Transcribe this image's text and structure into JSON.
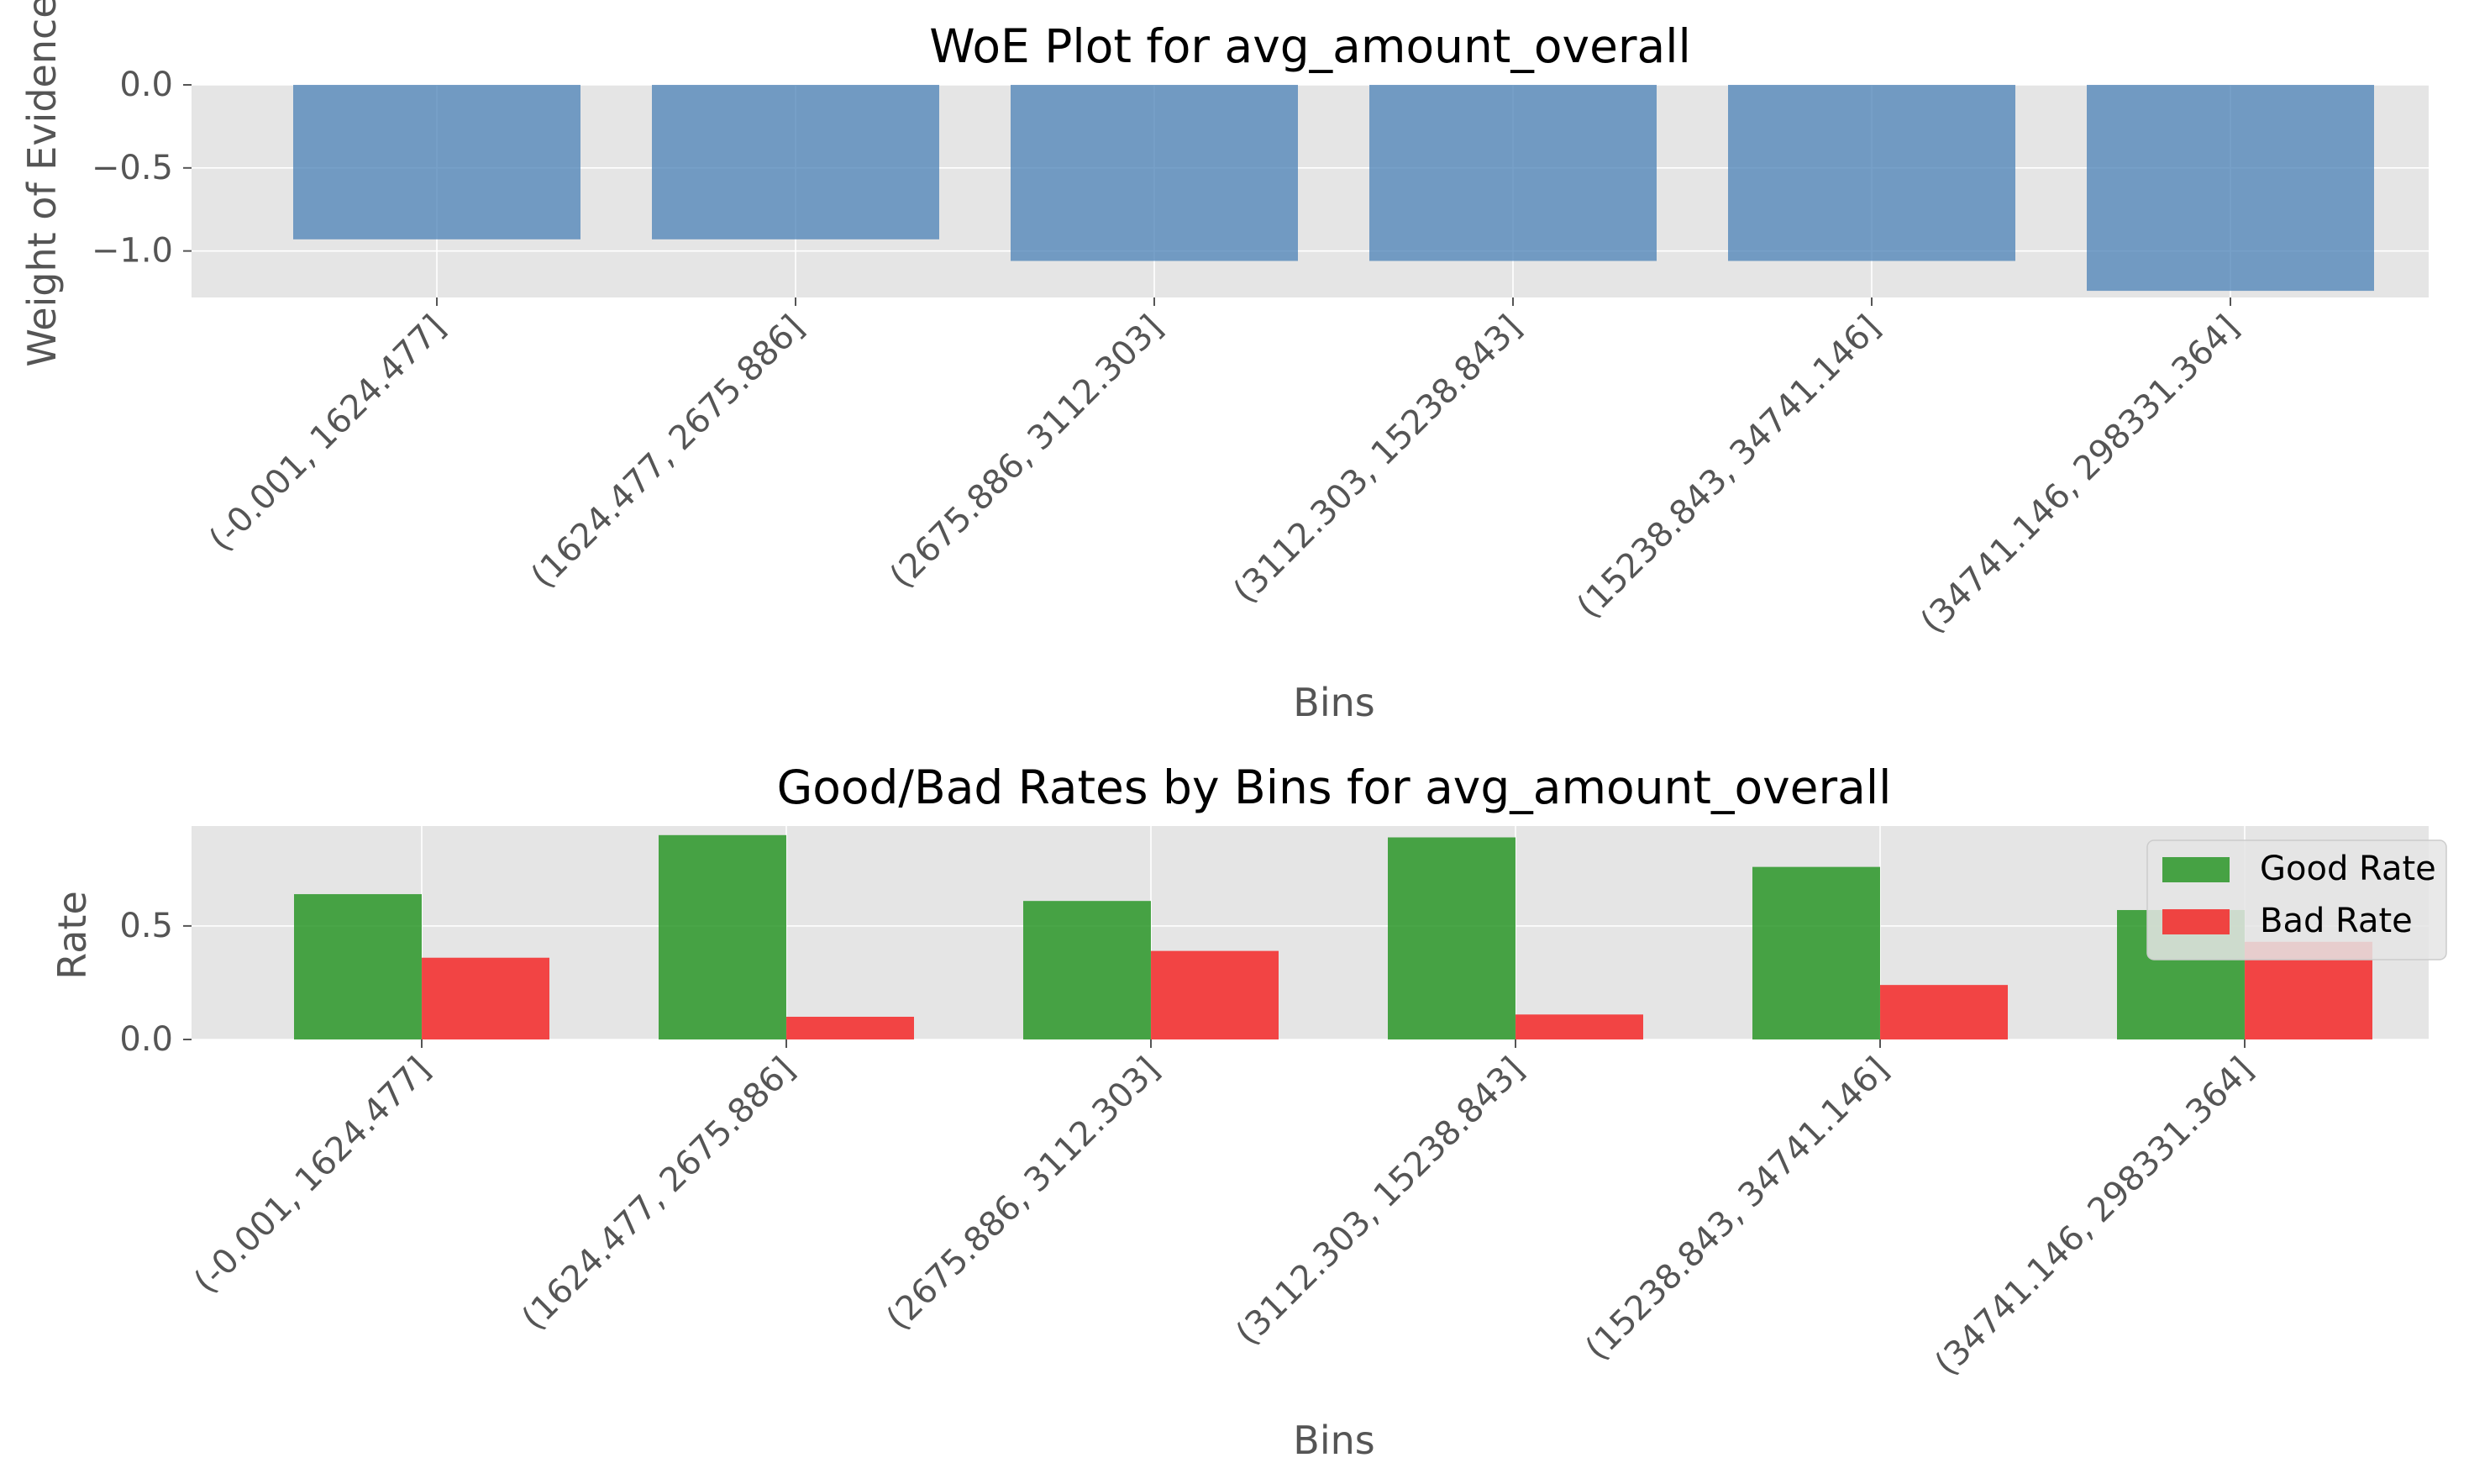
{
  "chart_data": [
    {
      "type": "bar",
      "title": "WoE Plot for avg_amount_overall",
      "xlabel": "Bins",
      "ylabel": "Weight of Evidence",
      "categories": [
        "(-0.001, 1624.477]",
        "(1624.477, 2675.886]",
        "(2675.886, 3112.303]",
        "(3112.303, 15238.843]",
        "(15238.843, 34741.146]",
        "(34741.146, 298331.364]"
      ],
      "values": [
        -0.93,
        -0.93,
        -1.06,
        -1.06,
        -1.06,
        -1.24
      ],
      "ylim": [
        -1.28,
        0.0
      ],
      "yticks": [
        0.0,
        -0.5,
        -1.0
      ],
      "ytick_labels": [
        "0.0",
        "−0.5",
        "−1.0"
      ],
      "grid": true,
      "color": "#4a80b5"
    },
    {
      "type": "bar",
      "title": "Good/Bad Rates by Bins for avg_amount_overall",
      "xlabel": "Bins",
      "ylabel": "Rate",
      "categories": [
        "(-0.001, 1624.477]",
        "(1624.477, 2675.886]",
        "(2675.886, 3112.303]",
        "(3112.303, 15238.843]",
        "(15238.843, 34741.146]",
        "(34741.146, 298331.364]"
      ],
      "series": [
        {
          "name": "Good Rate",
          "values": [
            0.64,
            0.9,
            0.61,
            0.89,
            0.76,
            0.57
          ],
          "color": "#2a9628"
        },
        {
          "name": "Bad Rate",
          "values": [
            0.36,
            0.1,
            0.39,
            0.11,
            0.24,
            0.43
          ],
          "color": "#f42828"
        }
      ],
      "ylim": [
        0,
        0.94
      ],
      "yticks": [
        0.0,
        0.5
      ],
      "ytick_labels": [
        "0.0",
        "0.5"
      ],
      "grid": true,
      "legend": "top-right"
    }
  ]
}
